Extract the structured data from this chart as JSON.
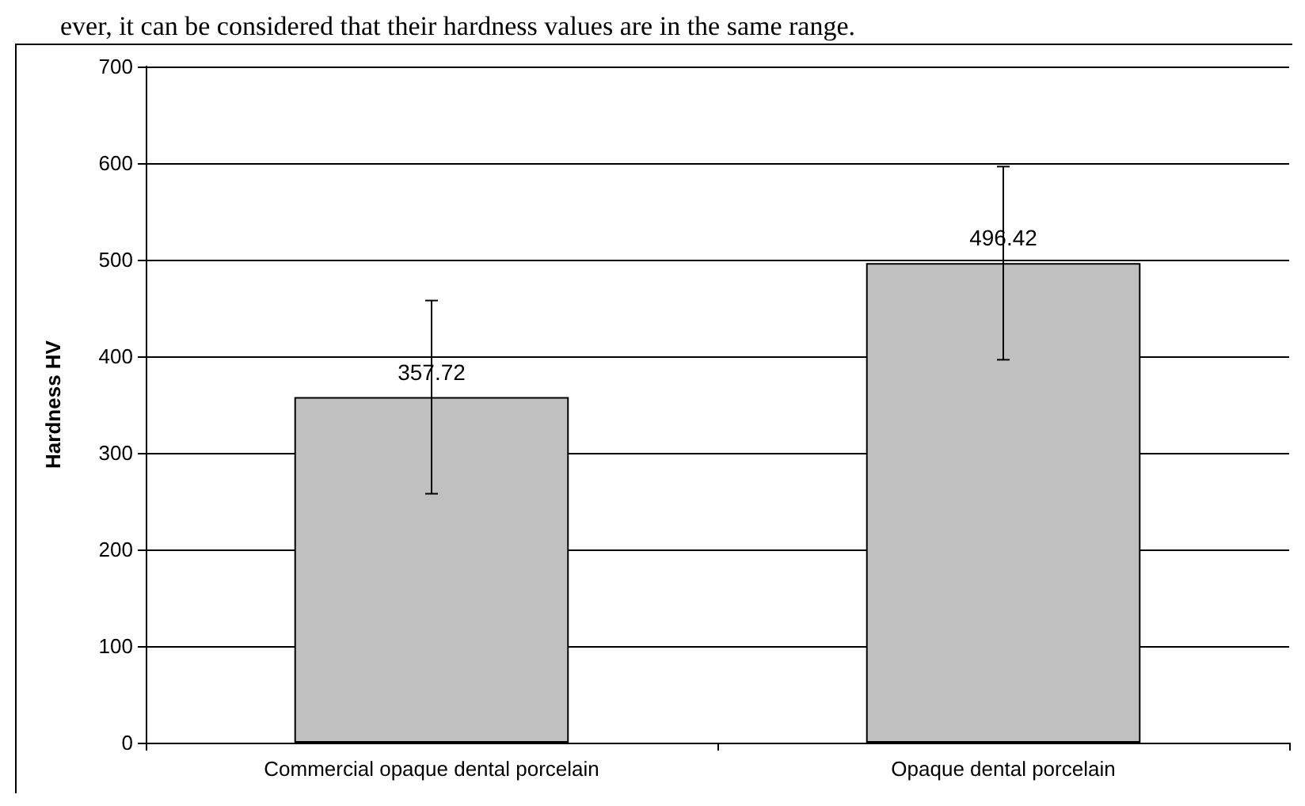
{
  "chart_data": {
    "type": "bar",
    "ylabel": "Hardness HV",
    "categories": [
      "Commercial opaque dental porcelain",
      "Opaque dental porcelain"
    ],
    "values": [
      357.72,
      496.42
    ],
    "errors": [
      100,
      100
    ],
    "color": "#c0c0c0",
    "ylim": [
      0,
      700
    ],
    "yticks": [
      0,
      100,
      200,
      300,
      400,
      500,
      600,
      700
    ],
    "grid": "y",
    "data_labels": true,
    "annotations": [
      "ever, it can be considered that their hardness values are in the same range."
    ]
  }
}
